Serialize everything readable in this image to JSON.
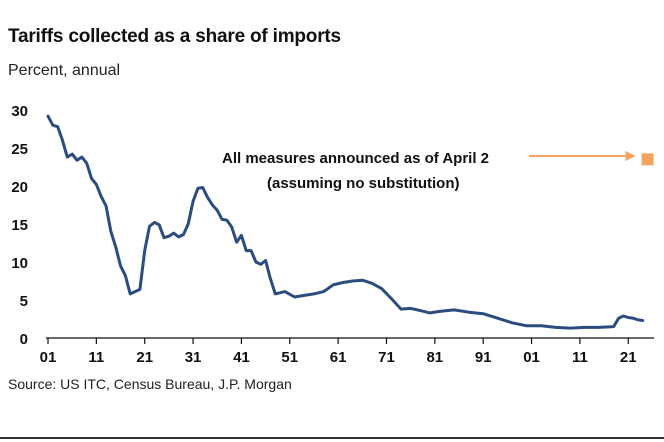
{
  "header": {
    "title": "Tariffs collected as a share of imports",
    "subtitle": "Percent, annual"
  },
  "footer": {
    "source": "Source: US ITC, Census Bureau, J.P. Morgan"
  },
  "colors": {
    "line": "#2b4c7e",
    "marker": "#f4a460",
    "arrow": "#f4a460",
    "axis": "#111111"
  },
  "chart_data": {
    "type": "line",
    "title": "Tariffs collected as a share of imports",
    "ylabel": "Percent, annual",
    "xlim": [
      1901,
      2025
    ],
    "ylim": [
      0,
      30
    ],
    "yticks": [
      0,
      5,
      10,
      15,
      20,
      25,
      30
    ],
    "xticks": [
      1901,
      1911,
      1921,
      1931,
      1941,
      1951,
      1961,
      1971,
      1981,
      1991,
      2001,
      2011,
      2021
    ],
    "xtick_labels": [
      "01",
      "11",
      "21",
      "31",
      "41",
      "51",
      "61",
      "71",
      "81",
      "91",
      "01",
      "11",
      "21"
    ],
    "series": [
      {
        "name": "Tariffs collected as a share of imports",
        "x": [
          1901,
          1902,
          1903,
          1904,
          1905,
          1906,
          1907,
          1908,
          1909,
          1910,
          1911,
          1912,
          1913,
          1914,
          1915,
          1916,
          1917,
          1918,
          1919,
          1920,
          1921,
          1922,
          1923,
          1924,
          1925,
          1926,
          1927,
          1928,
          1929,
          1930,
          1931,
          1932,
          1933,
          1934,
          1935,
          1936,
          1937,
          1938,
          1939,
          1940,
          1941,
          1942,
          1943,
          1944,
          1945,
          1946,
          1947,
          1948,
          1950,
          1952,
          1954,
          1956,
          1958,
          1960,
          1962,
          1964,
          1966,
          1968,
          1970,
          1972,
          1974,
          1976,
          1978,
          1980,
          1982,
          1985,
          1988,
          1991,
          1994,
          1997,
          2000,
          2003,
          2006,
          2009,
          2012,
          2015,
          2018,
          2019,
          2020,
          2021,
          2022,
          2023,
          2024
        ],
        "values": [
          29.2,
          28.0,
          27.8,
          26.0,
          23.8,
          24.2,
          23.4,
          23.8,
          23.0,
          21.0,
          20.2,
          18.6,
          17.4,
          14.0,
          12.0,
          9.5,
          8.2,
          5.8,
          6.1,
          6.4,
          11.5,
          14.7,
          15.2,
          14.9,
          13.2,
          13.4,
          13.8,
          13.3,
          13.6,
          15.0,
          18.0,
          19.7,
          19.8,
          18.5,
          17.5,
          16.8,
          15.6,
          15.5,
          14.6,
          12.6,
          13.5,
          11.5,
          11.5,
          10.0,
          9.7,
          10.2,
          7.8,
          5.8,
          6.1,
          5.4,
          5.6,
          5.8,
          6.1,
          7.0,
          7.3,
          7.5,
          7.6,
          7.2,
          6.5,
          5.2,
          3.8,
          3.9,
          3.6,
          3.3,
          3.5,
          3.7,
          3.4,
          3.2,
          2.6,
          2.0,
          1.6,
          1.6,
          1.4,
          1.3,
          1.4,
          1.4,
          1.5,
          2.6,
          2.9,
          2.7,
          2.6,
          2.4,
          2.3
        ]
      }
    ],
    "annotation": {
      "line1": "All measures announced as of April 2",
      "line2": "(assuming no substitution)",
      "point": {
        "x": 2025,
        "y": 23.5
      }
    }
  }
}
